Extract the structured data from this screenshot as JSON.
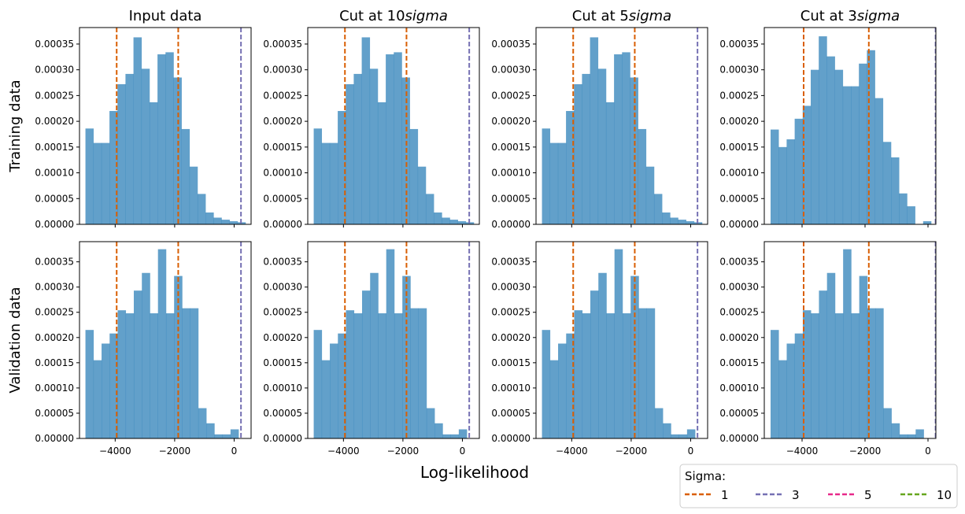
{
  "chart_data": {
    "type": "bar",
    "xlabel": "Log-likelihood",
    "xticks": [
      -4000,
      -2000,
      0
    ],
    "yticks": [
      0,
      5e-05,
      0.0001,
      0.00015,
      0.0002,
      0.00025,
      0.0003,
      0.00035
    ],
    "ytick_labels": [
      "0.00000",
      "0.00005",
      "0.00010",
      "0.00015",
      "0.00020",
      "0.00025",
      "0.00030",
      "0.00035"
    ],
    "xlabels": [
      "−4000",
      "−2000",
      "0"
    ],
    "row_labels": [
      "Training data",
      "Validation data"
    ],
    "col_titles": [
      "Input data",
      "Cut at 10",
      "Cut at 5",
      "Cut at 3"
    ],
    "col_title_suffix": "sigma",
    "legend": {
      "title": "Sigma:",
      "entries": [
        {
          "label": "1",
          "color": "#d95f02"
        },
        {
          "label": "3",
          "color": "#7570b3"
        },
        {
          "label": "5",
          "color": "#e7298a"
        },
        {
          "label": "10",
          "color": "#66a61e"
        }
      ]
    },
    "bar_color": "#1f77b4",
    "panels": [
      {
        "row": 0,
        "col": 0,
        "xlim": [
          -5200,
          570
        ],
        "ylim": [
          0,
          0.000382
        ],
        "hist": [
          [
            -5000,
            -4731,
            0.000186
          ],
          [
            -4731,
            -4462,
            0.000158
          ],
          [
            -4462,
            -4192,
            0.000158
          ],
          [
            -4192,
            -3923,
            0.00022
          ],
          [
            -3923,
            -3654,
            0.000272
          ],
          [
            -3654,
            -3385,
            0.000292
          ],
          [
            -3385,
            -3115,
            0.000363
          ],
          [
            -3115,
            -2846,
            0.000302
          ],
          [
            -2846,
            -2577,
            0.000237
          ],
          [
            -2577,
            -2308,
            0.00033
          ],
          [
            -2308,
            -2038,
            0.000334
          ],
          [
            -2038,
            -1769,
            0.000285
          ],
          [
            -1769,
            -1500,
            0.000185
          ],
          [
            -1500,
            -1231,
            0.000112
          ],
          [
            -1231,
            -962,
            5.9e-05
          ],
          [
            -962,
            -692,
            2.3e-05
          ],
          [
            -692,
            -423,
            1.3e-05
          ],
          [
            -423,
            -154,
            9e-06
          ],
          [
            -154,
            115,
            6e-06
          ],
          [
            115,
            384,
            4e-06
          ]
        ],
        "lines": [
          {
            "x": -3950,
            "color": "#d95f02"
          },
          {
            "x": -1880,
            "color": "#d95f02"
          },
          {
            "x": 230,
            "color": "#7570b3"
          }
        ]
      },
      {
        "row": 0,
        "col": 1,
        "xlim": [
          -5200,
          570
        ],
        "ylim": [
          0,
          0.000382
        ],
        "hist": [
          [
            -5000,
            -4731,
            0.000186
          ],
          [
            -4731,
            -4462,
            0.000158
          ],
          [
            -4462,
            -4192,
            0.000158
          ],
          [
            -4192,
            -3923,
            0.00022
          ],
          [
            -3923,
            -3654,
            0.000272
          ],
          [
            -3654,
            -3385,
            0.000292
          ],
          [
            -3385,
            -3115,
            0.000363
          ],
          [
            -3115,
            -2846,
            0.000302
          ],
          [
            -2846,
            -2577,
            0.000237
          ],
          [
            -2577,
            -2308,
            0.00033
          ],
          [
            -2308,
            -2038,
            0.000334
          ],
          [
            -2038,
            -1769,
            0.000285
          ],
          [
            -1769,
            -1500,
            0.000185
          ],
          [
            -1500,
            -1231,
            0.000112
          ],
          [
            -1231,
            -962,
            5.9e-05
          ],
          [
            -962,
            -692,
            2.3e-05
          ],
          [
            -692,
            -423,
            1.3e-05
          ],
          [
            -423,
            -154,
            9e-06
          ],
          [
            -154,
            115,
            6e-06
          ],
          [
            115,
            384,
            4e-06
          ]
        ],
        "lines": [
          {
            "x": -3950,
            "color": "#d95f02"
          },
          {
            "x": -1880,
            "color": "#d95f02"
          },
          {
            "x": 230,
            "color": "#7570b3"
          }
        ]
      },
      {
        "row": 0,
        "col": 2,
        "xlim": [
          -5200,
          570
        ],
        "ylim": [
          0,
          0.000382
        ],
        "hist": [
          [
            -5000,
            -4731,
            0.000186
          ],
          [
            -4731,
            -4462,
            0.000158
          ],
          [
            -4462,
            -4192,
            0.000158
          ],
          [
            -4192,
            -3923,
            0.00022
          ],
          [
            -3923,
            -3654,
            0.000272
          ],
          [
            -3654,
            -3385,
            0.000292
          ],
          [
            -3385,
            -3115,
            0.000363
          ],
          [
            -3115,
            -2846,
            0.000302
          ],
          [
            -2846,
            -2577,
            0.000237
          ],
          [
            -2577,
            -2308,
            0.00033
          ],
          [
            -2308,
            -2038,
            0.000334
          ],
          [
            -2038,
            -1769,
            0.000285
          ],
          [
            -1769,
            -1500,
            0.000185
          ],
          [
            -1500,
            -1231,
            0.000112
          ],
          [
            -1231,
            -962,
            5.9e-05
          ],
          [
            -962,
            -692,
            2.3e-05
          ],
          [
            -692,
            -423,
            1.3e-05
          ],
          [
            -423,
            -154,
            9e-06
          ],
          [
            -154,
            115,
            6e-06
          ],
          [
            115,
            384,
            4e-06
          ]
        ],
        "lines": [
          {
            "x": -3950,
            "color": "#d95f02"
          },
          {
            "x": -1880,
            "color": "#d95f02"
          },
          {
            "x": 230,
            "color": "#7570b3"
          }
        ]
      },
      {
        "row": 0,
        "col": 3,
        "xlim": [
          -5200,
          250
        ],
        "ylim": [
          0,
          0.000382
        ],
        "hist": [
          [
            -5000,
            -4745,
            0.000184
          ],
          [
            -4745,
            -4490,
            0.00015
          ],
          [
            -4490,
            -4235,
            0.000165
          ],
          [
            -4235,
            -3980,
            0.000205
          ],
          [
            -3980,
            -3725,
            0.00023
          ],
          [
            -3725,
            -3470,
            0.0003
          ],
          [
            -3470,
            -3215,
            0.000365
          ],
          [
            -3215,
            -2960,
            0.000326
          ],
          [
            -2960,
            -2705,
            0.0003
          ],
          [
            -2705,
            -2450,
            0.000268
          ],
          [
            -2450,
            -2195,
            0.000268
          ],
          [
            -2195,
            -1940,
            0.000312
          ],
          [
            -1940,
            -1685,
            0.000338
          ],
          [
            -1685,
            -1430,
            0.000245
          ],
          [
            -1430,
            -1175,
            0.00016
          ],
          [
            -1175,
            -920,
            0.00013
          ],
          [
            -920,
            -665,
            6e-05
          ],
          [
            -665,
            -410,
            3.5e-05
          ],
          [
            -410,
            -155,
            0
          ],
          [
            -155,
            100,
            6e-06
          ]
        ],
        "lines": [
          {
            "x": -3950,
            "color": "#d95f02"
          },
          {
            "x": -1880,
            "color": "#d95f02"
          },
          {
            "x": 240,
            "color": "#7570b3"
          }
        ]
      },
      {
        "row": 1,
        "col": 0,
        "xlim": [
          -5200,
          570
        ],
        "ylim": [
          0,
          0.00039
        ],
        "hist": [
          [
            -5000,
            -4729,
            0.000215
          ],
          [
            -4729,
            -4458,
            0.000155
          ],
          [
            -4458,
            -4187,
            0.000188
          ],
          [
            -4187,
            -3916,
            0.000208
          ],
          [
            -3916,
            -3645,
            0.000254
          ],
          [
            -3645,
            -3374,
            0.000248
          ],
          [
            -3374,
            -3103,
            0.000293
          ],
          [
            -3103,
            -2832,
            0.000328
          ],
          [
            -2832,
            -2561,
            0.000248
          ],
          [
            -2561,
            -2290,
            0.000375
          ],
          [
            -2290,
            -2019,
            0.000248
          ],
          [
            -2019,
            -1748,
            0.000322
          ],
          [
            -1748,
            -1477,
            0.000258
          ],
          [
            -1477,
            -1206,
            0.000258
          ],
          [
            -1206,
            -935,
            6e-05
          ],
          [
            -935,
            -664,
            3e-05
          ],
          [
            -664,
            -393,
            8e-06
          ],
          [
            -393,
            -122,
            8e-06
          ],
          [
            -122,
            149,
            1.8e-05
          ]
        ],
        "lines": [
          {
            "x": -3950,
            "color": "#d95f02"
          },
          {
            "x": -1880,
            "color": "#d95f02"
          },
          {
            "x": 230,
            "color": "#7570b3"
          }
        ]
      },
      {
        "row": 1,
        "col": 1,
        "xlim": [
          -5200,
          570
        ],
        "ylim": [
          0,
          0.00039
        ],
        "hist": [
          [
            -5000,
            -4729,
            0.000215
          ],
          [
            -4729,
            -4458,
            0.000155
          ],
          [
            -4458,
            -4187,
            0.000188
          ],
          [
            -4187,
            -3916,
            0.000208
          ],
          [
            -3916,
            -3645,
            0.000254
          ],
          [
            -3645,
            -3374,
            0.000248
          ],
          [
            -3374,
            -3103,
            0.000293
          ],
          [
            -3103,
            -2832,
            0.000328
          ],
          [
            -2832,
            -2561,
            0.000248
          ],
          [
            -2561,
            -2290,
            0.000375
          ],
          [
            -2290,
            -2019,
            0.000248
          ],
          [
            -2019,
            -1748,
            0.000322
          ],
          [
            -1748,
            -1477,
            0.000258
          ],
          [
            -1477,
            -1206,
            0.000258
          ],
          [
            -1206,
            -935,
            6e-05
          ],
          [
            -935,
            -664,
            3e-05
          ],
          [
            -664,
            -393,
            8e-06
          ],
          [
            -393,
            -122,
            8e-06
          ],
          [
            -122,
            149,
            1.8e-05
          ]
        ],
        "lines": [
          {
            "x": -3950,
            "color": "#d95f02"
          },
          {
            "x": -1880,
            "color": "#d95f02"
          },
          {
            "x": 230,
            "color": "#7570b3"
          }
        ]
      },
      {
        "row": 1,
        "col": 2,
        "xlim": [
          -5200,
          570
        ],
        "ylim": [
          0,
          0.00039
        ],
        "hist": [
          [
            -5000,
            -4729,
            0.000215
          ],
          [
            -4729,
            -4458,
            0.000155
          ],
          [
            -4458,
            -4187,
            0.000188
          ],
          [
            -4187,
            -3916,
            0.000208
          ],
          [
            -3916,
            -3645,
            0.000254
          ],
          [
            -3645,
            -3374,
            0.000248
          ],
          [
            -3374,
            -3103,
            0.000293
          ],
          [
            -3103,
            -2832,
            0.000328
          ],
          [
            -2832,
            -2561,
            0.000248
          ],
          [
            -2561,
            -2290,
            0.000375
          ],
          [
            -2290,
            -2019,
            0.000248
          ],
          [
            -2019,
            -1748,
            0.000322
          ],
          [
            -1748,
            -1477,
            0.000258
          ],
          [
            -1477,
            -1206,
            0.000258
          ],
          [
            -1206,
            -935,
            6e-05
          ],
          [
            -935,
            -664,
            3e-05
          ],
          [
            -664,
            -393,
            8e-06
          ],
          [
            -393,
            -122,
            8e-06
          ],
          [
            -122,
            149,
            1.8e-05
          ]
        ],
        "lines": [
          {
            "x": -3950,
            "color": "#d95f02"
          },
          {
            "x": -1880,
            "color": "#d95f02"
          },
          {
            "x": 230,
            "color": "#7570b3"
          }
        ]
      },
      {
        "row": 1,
        "col": 3,
        "xlim": [
          -5200,
          250
        ],
        "ylim": [
          0,
          0.00039
        ],
        "hist": [
          [
            -5000,
            -4744,
            0.000215
          ],
          [
            -4744,
            -4488,
            0.000155
          ],
          [
            -4488,
            -4232,
            0.000188
          ],
          [
            -4232,
            -3976,
            0.000208
          ],
          [
            -3976,
            -3720,
            0.000254
          ],
          [
            -3720,
            -3464,
            0.000248
          ],
          [
            -3464,
            -3208,
            0.000293
          ],
          [
            -3208,
            -2952,
            0.000328
          ],
          [
            -2952,
            -2696,
            0.000248
          ],
          [
            -2696,
            -2440,
            0.000375
          ],
          [
            -2440,
            -2184,
            0.000248
          ],
          [
            -2184,
            -1928,
            0.000322
          ],
          [
            -1928,
            -1672,
            0.000258
          ],
          [
            -1672,
            -1416,
            0.000258
          ],
          [
            -1416,
            -1160,
            6e-05
          ],
          [
            -1160,
            -904,
            3e-05
          ],
          [
            -904,
            -648,
            8e-06
          ],
          [
            -648,
            -392,
            8e-06
          ],
          [
            -392,
            -136,
            1.8e-05
          ]
        ],
        "lines": [
          {
            "x": -3950,
            "color": "#d95f02"
          },
          {
            "x": -1880,
            "color": "#d95f02"
          },
          {
            "x": 240,
            "color": "#7570b3"
          }
        ]
      }
    ]
  }
}
